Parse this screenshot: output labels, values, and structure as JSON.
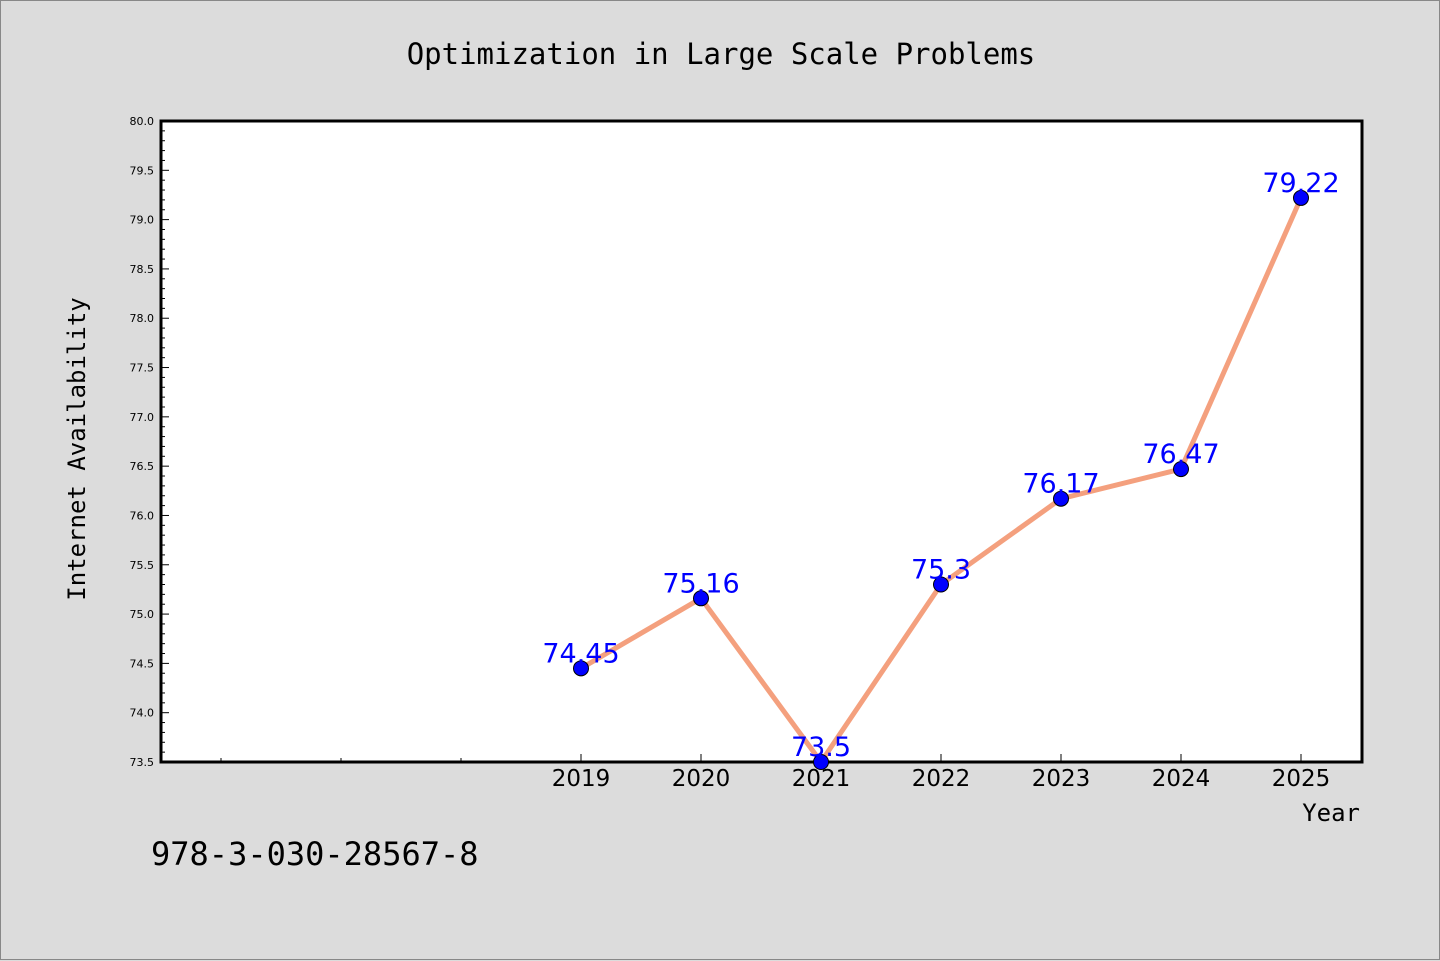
{
  "chart_data": {
    "type": "line",
    "title": "Optimization in Large Scale Problems",
    "xlabel": "Year",
    "ylabel": "Internet Availability",
    "x": [
      "2019",
      "2020",
      "2021",
      "2022",
      "2023",
      "2024",
      "2025"
    ],
    "values": [
      74.45,
      75.16,
      73.5,
      75.3,
      76.17,
      76.47,
      79.22
    ],
    "data_labels": [
      "74.45",
      "75.16",
      "73.5",
      "75.3",
      "76.17",
      "76.47",
      "79.22"
    ],
    "ylim": [
      73.5,
      80.0
    ],
    "y_ticks": [
      "73.5",
      "74.0",
      "74.5",
      "75.0",
      "75.5",
      "76.0",
      "76.5",
      "77.0",
      "77.5",
      "78.0",
      "78.5",
      "79.0",
      "79.5",
      "80.0"
    ],
    "grid": false,
    "legend": "none",
    "colors": {
      "line": "#f4a07e",
      "marker": "#0000ff",
      "label": "#0000ff",
      "plot_bg": "#ffffff",
      "page_bg": "#dcdcdc"
    }
  },
  "footnote": "978-3-030-28567-8"
}
